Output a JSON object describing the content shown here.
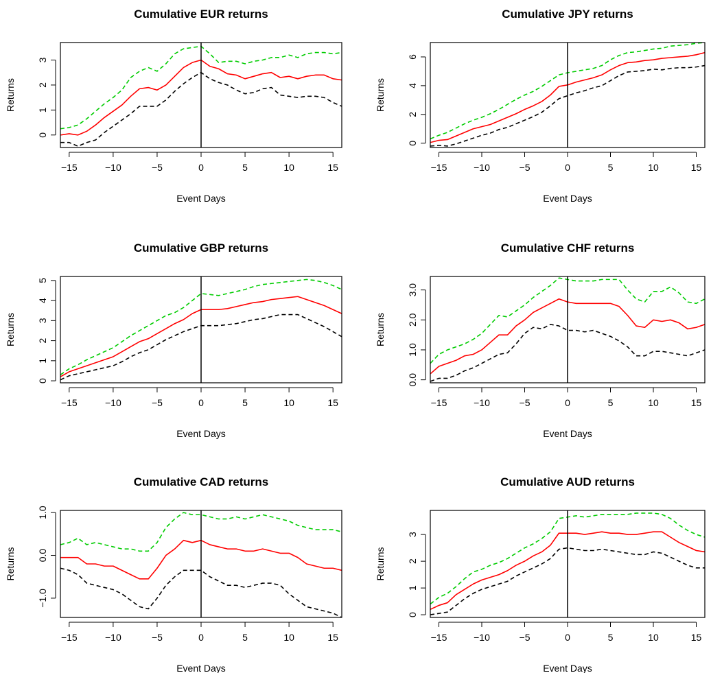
{
  "chart_data": [
    {
      "type": "line",
      "title": "Cumulative EUR returns",
      "xlabel": "Event Days",
      "ylabel": "Returns",
      "xlim": [
        -16,
        16
      ],
      "ylim": [
        -0.5,
        3.7
      ],
      "xticks": [
        -15,
        -10,
        -5,
        0,
        5,
        10,
        15
      ],
      "xtick_labels": [
        "−15",
        "−10",
        "−5",
        "0",
        "5",
        "10",
        "15"
      ],
      "yticks": [
        0,
        1,
        2,
        3
      ],
      "ytick_labels": [
        "0",
        "1",
        "2",
        "3"
      ],
      "vline_x": 0,
      "grid": false,
      "x": [
        -16,
        -15,
        -14,
        -13,
        -12,
        -11,
        -10,
        -9,
        -8,
        -7,
        -6,
        -5,
        -4,
        -3,
        -2,
        -1,
        0,
        1,
        2,
        3,
        4,
        5,
        6,
        7,
        8,
        9,
        10,
        11,
        12,
        13,
        14,
        15,
        16
      ],
      "series": [
        {
          "color": "#00cc00",
          "dash": "dashed",
          "values": [
            0.25,
            0.3,
            0.4,
            0.65,
            0.95,
            1.25,
            1.5,
            1.8,
            2.3,
            2.55,
            2.7,
            2.55,
            2.85,
            3.25,
            3.45,
            3.5,
            3.55,
            3.25,
            2.9,
            2.95,
            2.95,
            2.85,
            2.95,
            3.0,
            3.1,
            3.1,
            3.2,
            3.1,
            3.25,
            3.3,
            3.3,
            3.25,
            3.3
          ]
        },
        {
          "color": "#ff0000",
          "dash": "solid",
          "values": [
            0.0,
            0.05,
            0.0,
            0.15,
            0.4,
            0.7,
            0.95,
            1.2,
            1.55,
            1.85,
            1.9,
            1.8,
            2.0,
            2.35,
            2.7,
            2.9,
            3.0,
            2.75,
            2.65,
            2.45,
            2.4,
            2.25,
            2.35,
            2.45,
            2.5,
            2.3,
            2.35,
            2.25,
            2.35,
            2.4,
            2.4,
            2.25,
            2.2
          ]
        },
        {
          "color": "#000000",
          "dash": "dashed",
          "values": [
            -0.3,
            -0.3,
            -0.45,
            -0.3,
            -0.2,
            0.1,
            0.35,
            0.6,
            0.85,
            1.15,
            1.15,
            1.15,
            1.4,
            1.75,
            2.05,
            2.3,
            2.5,
            2.25,
            2.1,
            2.0,
            1.8,
            1.65,
            1.7,
            1.85,
            1.9,
            1.6,
            1.55,
            1.5,
            1.55,
            1.55,
            1.5,
            1.3,
            1.15
          ]
        }
      ]
    },
    {
      "type": "line",
      "title": "Cumulative JPY returns",
      "xlabel": "Event Days",
      "ylabel": "Returns",
      "xlim": [
        -16,
        16
      ],
      "ylim": [
        -0.3,
        7.0
      ],
      "xticks": [
        -15,
        -10,
        -5,
        0,
        5,
        10,
        15
      ],
      "xtick_labels": [
        "−15",
        "−10",
        "−5",
        "0",
        "5",
        "10",
        "15"
      ],
      "yticks": [
        0,
        2,
        4,
        6
      ],
      "ytick_labels": [
        "0",
        "2",
        "4",
        "6"
      ],
      "vline_x": 0,
      "grid": false,
      "x": [
        -16,
        -15,
        -14,
        -13,
        -12,
        -11,
        -10,
        -9,
        -8,
        -7,
        -6,
        -5,
        -4,
        -3,
        -2,
        -1,
        0,
        1,
        2,
        3,
        4,
        5,
        6,
        7,
        8,
        9,
        10,
        11,
        12,
        13,
        14,
        15,
        16
      ],
      "series": [
        {
          "color": "#00cc00",
          "dash": "dashed",
          "values": [
            0.3,
            0.55,
            0.75,
            1.05,
            1.35,
            1.6,
            1.8,
            2.05,
            2.35,
            2.7,
            3.05,
            3.35,
            3.6,
            3.95,
            4.35,
            4.75,
            4.9,
            5.0,
            5.1,
            5.2,
            5.4,
            5.8,
            6.1,
            6.3,
            6.35,
            6.45,
            6.55,
            6.6,
            6.75,
            6.8,
            6.85,
            6.95,
            7.0
          ]
        },
        {
          "color": "#ff0000",
          "dash": "solid",
          "values": [
            0.05,
            0.2,
            0.25,
            0.5,
            0.75,
            1.0,
            1.15,
            1.3,
            1.55,
            1.8,
            2.05,
            2.35,
            2.6,
            2.9,
            3.35,
            3.95,
            4.05,
            4.25,
            4.4,
            4.55,
            4.75,
            5.1,
            5.4,
            5.6,
            5.65,
            5.75,
            5.8,
            5.9,
            5.95,
            6.0,
            6.05,
            6.15,
            6.3
          ]
        },
        {
          "color": "#000000",
          "dash": "dashed",
          "values": [
            -0.2,
            -0.15,
            -0.2,
            -0.05,
            0.15,
            0.35,
            0.55,
            0.7,
            0.95,
            1.1,
            1.35,
            1.6,
            1.85,
            2.15,
            2.6,
            3.1,
            3.3,
            3.5,
            3.65,
            3.85,
            4.0,
            4.35,
            4.7,
            4.95,
            5.0,
            5.05,
            5.15,
            5.1,
            5.2,
            5.25,
            5.25,
            5.3,
            5.4
          ]
        }
      ]
    },
    {
      "type": "line",
      "title": "Cumulative GBP returns",
      "xlabel": "Event Days",
      "ylabel": "Returns",
      "xlim": [
        -16,
        16
      ],
      "ylim": [
        -0.1,
        5.2
      ],
      "xticks": [
        -15,
        -10,
        -5,
        0,
        5,
        10,
        15
      ],
      "xtick_labels": [
        "−15",
        "−10",
        "−5",
        "0",
        "5",
        "10",
        "15"
      ],
      "yticks": [
        0,
        1,
        2,
        3,
        4,
        5
      ],
      "ytick_labels": [
        "0",
        "1",
        "2",
        "3",
        "4",
        "5"
      ],
      "vline_x": 0,
      "grid": false,
      "x": [
        -16,
        -15,
        -14,
        -13,
        -12,
        -11,
        -10,
        -9,
        -8,
        -7,
        -6,
        -5,
        -4,
        -3,
        -2,
        -1,
        0,
        1,
        2,
        3,
        4,
        5,
        6,
        7,
        8,
        9,
        10,
        11,
        12,
        13,
        14,
        15,
        16
      ],
      "series": [
        {
          "color": "#00cc00",
          "dash": "dashed",
          "values": [
            0.3,
            0.6,
            0.8,
            1.05,
            1.25,
            1.45,
            1.65,
            1.95,
            2.25,
            2.5,
            2.75,
            3.0,
            3.25,
            3.4,
            3.65,
            4.0,
            4.35,
            4.3,
            4.25,
            4.35,
            4.45,
            4.55,
            4.7,
            4.8,
            4.85,
            4.9,
            4.95,
            5.0,
            5.05,
            5.0,
            4.9,
            4.75,
            4.55
          ]
        },
        {
          "color": "#ff0000",
          "dash": "solid",
          "values": [
            0.2,
            0.45,
            0.6,
            0.75,
            0.9,
            1.05,
            1.2,
            1.45,
            1.7,
            1.95,
            2.1,
            2.35,
            2.6,
            2.85,
            3.05,
            3.35,
            3.55,
            3.55,
            3.55,
            3.6,
            3.7,
            3.8,
            3.9,
            3.95,
            4.05,
            4.1,
            4.15,
            4.2,
            4.05,
            3.9,
            3.75,
            3.55,
            3.35
          ]
        },
        {
          "color": "#000000",
          "dash": "dashed",
          "values": [
            0.05,
            0.25,
            0.35,
            0.45,
            0.55,
            0.65,
            0.75,
            0.95,
            1.2,
            1.4,
            1.55,
            1.8,
            2.05,
            2.25,
            2.45,
            2.6,
            2.75,
            2.75,
            2.75,
            2.8,
            2.85,
            2.95,
            3.05,
            3.1,
            3.2,
            3.3,
            3.3,
            3.3,
            3.1,
            2.9,
            2.7,
            2.45,
            2.2
          ]
        }
      ]
    },
    {
      "type": "line",
      "title": "Cumulative CHF returns",
      "xlabel": "Event Days",
      "ylabel": "Returns",
      "xlim": [
        -16,
        16
      ],
      "ylim": [
        -0.1,
        3.45
      ],
      "xticks": [
        -15,
        -10,
        -5,
        0,
        5,
        10,
        15
      ],
      "xtick_labels": [
        "−15",
        "−10",
        "−5",
        "0",
        "5",
        "10",
        "15"
      ],
      "yticks": [
        0,
        1,
        2,
        3
      ],
      "ytick_labels": [
        "0.0",
        "1.0",
        "2.0",
        "3.0"
      ],
      "vline_x": 0,
      "grid": false,
      "x": [
        -16,
        -15,
        -14,
        -13,
        -12,
        -11,
        -10,
        -9,
        -8,
        -7,
        -6,
        -5,
        -4,
        -3,
        -2,
        -1,
        0,
        1,
        2,
        3,
        4,
        5,
        6,
        7,
        8,
        9,
        10,
        11,
        12,
        13,
        14,
        15,
        16
      ],
      "series": [
        {
          "color": "#00cc00",
          "dash": "dashed",
          "values": [
            0.55,
            0.85,
            1.0,
            1.1,
            1.2,
            1.35,
            1.55,
            1.85,
            2.15,
            2.1,
            2.3,
            2.5,
            2.75,
            2.95,
            3.15,
            3.4,
            3.35,
            3.3,
            3.3,
            3.3,
            3.35,
            3.35,
            3.35,
            3.0,
            2.7,
            2.6,
            2.95,
            2.95,
            3.1,
            2.9,
            2.6,
            2.55,
            2.7
          ]
        },
        {
          "color": "#ff0000",
          "dash": "solid",
          "values": [
            0.2,
            0.45,
            0.55,
            0.65,
            0.8,
            0.85,
            1.0,
            1.25,
            1.5,
            1.5,
            1.8,
            2.0,
            2.25,
            2.4,
            2.55,
            2.7,
            2.6,
            2.55,
            2.55,
            2.55,
            2.55,
            2.55,
            2.45,
            2.15,
            1.8,
            1.75,
            2.0,
            1.95,
            2.0,
            1.9,
            1.7,
            1.75,
            1.85
          ]
        },
        {
          "color": "#000000",
          "dash": "dashed",
          "values": [
            -0.05,
            0.05,
            0.05,
            0.15,
            0.3,
            0.4,
            0.55,
            0.7,
            0.85,
            0.9,
            1.2,
            1.55,
            1.75,
            1.7,
            1.85,
            1.8,
            1.65,
            1.65,
            1.6,
            1.65,
            1.55,
            1.45,
            1.3,
            1.1,
            0.8,
            0.8,
            0.95,
            0.95,
            0.9,
            0.85,
            0.8,
            0.9,
            1.0
          ]
        }
      ]
    },
    {
      "type": "line",
      "title": "Cumulative CAD returns",
      "xlabel": "Event Days",
      "ylabel": "Returns",
      "xlim": [
        -16,
        16
      ],
      "ylim": [
        -1.45,
        1.05
      ],
      "xticks": [
        -15,
        -10,
        -5,
        0,
        5,
        10,
        15
      ],
      "xtick_labels": [
        "−15",
        "−10",
        "−5",
        "0",
        "5",
        "10",
        "15"
      ],
      "yticks": [
        -1,
        0,
        1
      ],
      "ytick_labels": [
        "−1.0",
        "0.0",
        "1.0"
      ],
      "vline_x": 0,
      "grid": false,
      "x": [
        -16,
        -15,
        -14,
        -13,
        -12,
        -11,
        -10,
        -9,
        -8,
        -7,
        -6,
        -5,
        -4,
        -3,
        -2,
        -1,
        0,
        1,
        2,
        3,
        4,
        5,
        6,
        7,
        8,
        9,
        10,
        11,
        12,
        13,
        14,
        15,
        16
      ],
      "series": [
        {
          "color": "#00cc00",
          "dash": "dashed",
          "values": [
            0.25,
            0.3,
            0.4,
            0.25,
            0.3,
            0.25,
            0.2,
            0.15,
            0.15,
            0.1,
            0.1,
            0.3,
            0.65,
            0.85,
            1.0,
            0.95,
            0.95,
            0.9,
            0.85,
            0.85,
            0.9,
            0.85,
            0.9,
            0.95,
            0.9,
            0.85,
            0.8,
            0.7,
            0.65,
            0.6,
            0.6,
            0.6,
            0.55
          ]
        },
        {
          "color": "#ff0000",
          "dash": "solid",
          "values": [
            -0.05,
            -0.05,
            -0.05,
            -0.2,
            -0.2,
            -0.25,
            -0.25,
            -0.35,
            -0.45,
            -0.55,
            -0.55,
            -0.3,
            0.0,
            0.15,
            0.35,
            0.3,
            0.35,
            0.25,
            0.2,
            0.15,
            0.15,
            0.1,
            0.1,
            0.15,
            0.1,
            0.05,
            0.05,
            -0.05,
            -0.2,
            -0.25,
            -0.3,
            -0.3,
            -0.35
          ]
        },
        {
          "color": "#000000",
          "dash": "dashed",
          "values": [
            -0.3,
            -0.35,
            -0.45,
            -0.65,
            -0.7,
            -0.75,
            -0.8,
            -0.9,
            -1.05,
            -1.2,
            -1.25,
            -1.0,
            -0.7,
            -0.5,
            -0.35,
            -0.35,
            -0.35,
            -0.5,
            -0.6,
            -0.7,
            -0.7,
            -0.75,
            -0.7,
            -0.65,
            -0.65,
            -0.7,
            -0.9,
            -1.05,
            -1.2,
            -1.25,
            -1.3,
            -1.35,
            -1.45
          ]
        }
      ]
    },
    {
      "type": "line",
      "title": "Cumulative AUD returns",
      "xlabel": "Event Days",
      "ylabel": "Returns",
      "xlim": [
        -16,
        16
      ],
      "ylim": [
        -0.1,
        3.9
      ],
      "xticks": [
        -15,
        -10,
        -5,
        0,
        5,
        10,
        15
      ],
      "xtick_labels": [
        "−15",
        "−10",
        "−5",
        "0",
        "5",
        "10",
        "15"
      ],
      "yticks": [
        0,
        1,
        2,
        3
      ],
      "ytick_labels": [
        "0",
        "1",
        "2",
        "3"
      ],
      "vline_x": 0,
      "grid": false,
      "x": [
        -16,
        -15,
        -14,
        -13,
        -12,
        -11,
        -10,
        -9,
        -8,
        -7,
        -6,
        -5,
        -4,
        -3,
        -2,
        -1,
        0,
        1,
        2,
        3,
        4,
        5,
        6,
        7,
        8,
        9,
        10,
        11,
        12,
        13,
        14,
        15,
        16
      ],
      "series": [
        {
          "color": "#00cc00",
          "dash": "dashed",
          "values": [
            0.4,
            0.65,
            0.8,
            1.05,
            1.35,
            1.6,
            1.7,
            1.85,
            1.95,
            2.1,
            2.3,
            2.5,
            2.65,
            2.85,
            3.1,
            3.6,
            3.65,
            3.7,
            3.65,
            3.7,
            3.75,
            3.75,
            3.75,
            3.75,
            3.8,
            3.8,
            3.8,
            3.75,
            3.6,
            3.35,
            3.15,
            3.0,
            2.9
          ]
        },
        {
          "color": "#ff0000",
          "dash": "solid",
          "values": [
            0.2,
            0.35,
            0.45,
            0.75,
            0.95,
            1.15,
            1.3,
            1.4,
            1.5,
            1.65,
            1.85,
            2.0,
            2.2,
            2.35,
            2.6,
            3.05,
            3.05,
            3.05,
            3.0,
            3.05,
            3.1,
            3.05,
            3.05,
            3.0,
            3.0,
            3.05,
            3.1,
            3.1,
            2.9,
            2.7,
            2.55,
            2.4,
            2.35
          ]
        },
        {
          "color": "#000000",
          "dash": "dashed",
          "values": [
            0.0,
            0.05,
            0.1,
            0.35,
            0.6,
            0.8,
            0.95,
            1.05,
            1.15,
            1.25,
            1.45,
            1.6,
            1.75,
            1.9,
            2.1,
            2.45,
            2.5,
            2.45,
            2.4,
            2.4,
            2.45,
            2.4,
            2.35,
            2.3,
            2.25,
            2.25,
            2.35,
            2.3,
            2.15,
            2.0,
            1.85,
            1.75,
            1.75
          ]
        }
      ]
    }
  ]
}
